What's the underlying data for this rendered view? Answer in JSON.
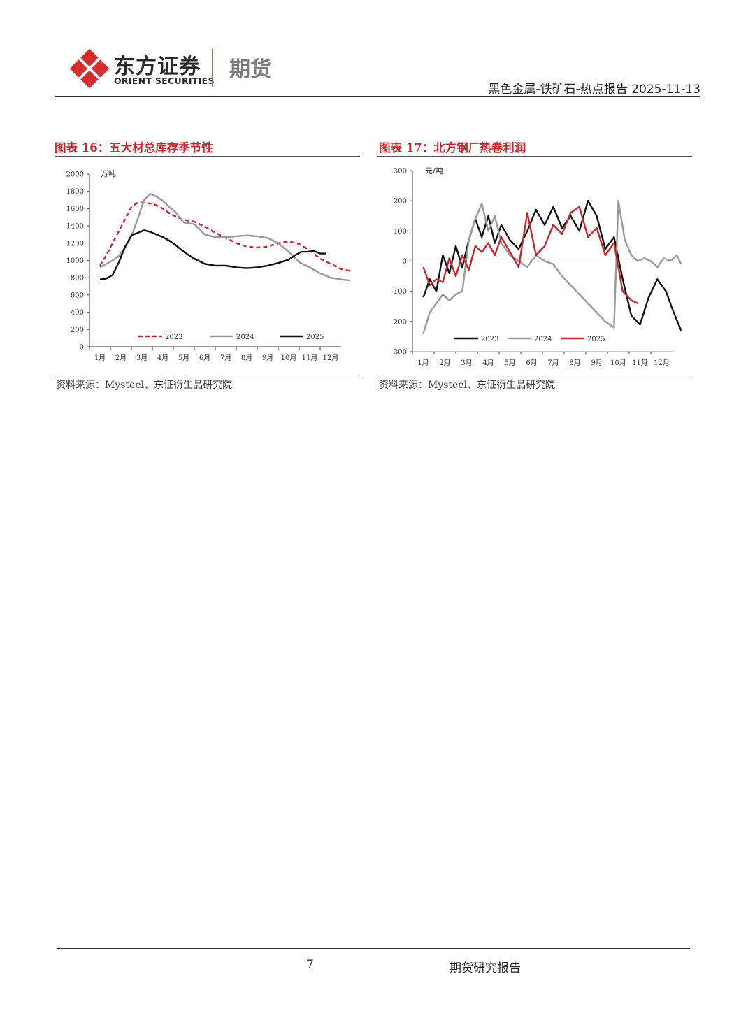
{
  "header": {
    "brand_cn": "东方证券",
    "brand_en": "ORIENT SECURITIES",
    "brand_sub": "期货",
    "report_title": "黑色金属-铁矿石-热点报告 2025-11-13"
  },
  "figures": [
    {
      "title": "图表 16：五大材总库存季节性",
      "source": "资料来源：Mysteel、东证衍生品研究院"
    },
    {
      "title": "图表 17：北方钢厂热卷利润",
      "source": "资料来源：Mysteel、东证衍生品研究院"
    }
  ],
  "chart_data": [
    {
      "type": "line",
      "unit": "万吨",
      "x_categories": [
        "1月",
        "2月",
        "3月",
        "4月",
        "5月",
        "6月",
        "7月",
        "8月",
        "9月",
        "10月",
        "11月",
        "12月"
      ],
      "ylim": [
        0,
        2000
      ],
      "yticks": [
        0,
        200,
        400,
        600,
        800,
        1000,
        1200,
        1400,
        1600,
        1800,
        2000
      ],
      "legend_position": "bottom",
      "series": [
        {
          "name": "2023",
          "color": "#c0282d",
          "style": "dashed",
          "x": [
            0,
            0.3,
            0.6,
            0.9,
            1.2,
            1.5,
            1.8,
            2.1,
            2.4,
            2.7,
            3.0,
            3.3,
            3.6,
            4.0,
            4.5,
            5.0,
            5.5,
            6.0,
            6.5,
            7.0,
            7.5,
            8.0,
            8.5,
            9.0,
            9.5,
            10.0,
            10.5,
            11.0,
            11.5,
            11.9
          ],
          "values": [
            940,
            1060,
            1200,
            1340,
            1480,
            1620,
            1670,
            1670,
            1660,
            1640,
            1600,
            1550,
            1510,
            1470,
            1450,
            1390,
            1320,
            1260,
            1200,
            1160,
            1150,
            1160,
            1200,
            1220,
            1190,
            1120,
            1020,
            960,
            900,
            880
          ]
        },
        {
          "name": "2024",
          "color": "#999999",
          "style": "solid",
          "x": [
            0,
            0.3,
            0.6,
            0.9,
            1.2,
            1.5,
            1.8,
            2.1,
            2.4,
            2.7,
            3.0,
            3.3,
            3.6,
            4.0,
            4.5,
            5.0,
            5.5,
            6.0,
            6.5,
            7.0,
            7.5,
            8.0,
            8.5,
            9.0,
            9.5,
            10.0,
            10.5,
            11.0,
            11.5,
            11.9
          ],
          "values": [
            920,
            960,
            1000,
            1050,
            1150,
            1280,
            1480,
            1700,
            1770,
            1740,
            1690,
            1620,
            1560,
            1440,
            1420,
            1300,
            1270,
            1270,
            1280,
            1290,
            1280,
            1260,
            1200,
            1100,
            980,
            920,
            850,
            800,
            780,
            770
          ]
        },
        {
          "name": "2025",
          "color": "#111111",
          "style": "solid",
          "x": [
            0,
            0.3,
            0.6,
            0.9,
            1.2,
            1.5,
            1.8,
            2.1,
            2.4,
            2.7,
            3.0,
            3.3,
            3.6,
            4.0,
            4.5,
            5.0,
            5.5,
            6.0,
            6.5,
            7.0,
            7.5,
            8.0,
            8.5,
            9.0,
            9.3,
            9.6,
            9.9,
            10.2,
            10.5,
            10.8
          ],
          "values": [
            780,
            790,
            830,
            980,
            1160,
            1290,
            1320,
            1350,
            1330,
            1300,
            1270,
            1230,
            1180,
            1100,
            1020,
            960,
            940,
            940,
            920,
            910,
            920,
            940,
            970,
            1010,
            1060,
            1100,
            1100,
            1110,
            1080,
            1080
          ]
        }
      ]
    },
    {
      "type": "line",
      "unit": "元/吨",
      "x_categories": [
        "1月",
        "2月",
        "3月",
        "4月",
        "5月",
        "6月",
        "7月",
        "8月",
        "9月",
        "10月",
        "11月",
        "12月"
      ],
      "ylim": [
        -300,
        300
      ],
      "yticks": [
        -300,
        -200,
        -100,
        0,
        100,
        200,
        300
      ],
      "legend_position": "bottom",
      "series": [
        {
          "name": "2023",
          "color": "#111111",
          "style": "solid",
          "x": [
            0,
            0.3,
            0.6,
            0.9,
            1.2,
            1.5,
            1.8,
            2.1,
            2.4,
            2.7,
            3.0,
            3.3,
            3.6,
            4.0,
            4.4,
            4.8,
            5.2,
            5.6,
            6.0,
            6.4,
            6.8,
            7.2,
            7.6,
            8.0,
            8.4,
            8.8,
            9.2,
            9.6,
            10.0,
            10.4,
            10.8,
            11.2,
            11.5,
            11.9
          ],
          "values": [
            -120,
            -60,
            -100,
            20,
            -40,
            50,
            -20,
            70,
            140,
            80,
            150,
            60,
            120,
            70,
            40,
            100,
            170,
            120,
            180,
            110,
            150,
            100,
            200,
            150,
            40,
            80,
            -60,
            -180,
            -210,
            -120,
            -60,
            -100,
            -160,
            -230
          ]
        },
        {
          "name": "2024",
          "color": "#999999",
          "style": "solid",
          "x": [
            0,
            0.3,
            0.6,
            0.9,
            1.2,
            1.5,
            1.8,
            2.1,
            2.4,
            2.7,
            3.0,
            3.3,
            3.6,
            4.0,
            4.4,
            4.8,
            5.2,
            5.6,
            6.0,
            6.4,
            6.8,
            7.2,
            7.6,
            8.0,
            8.4,
            8.8,
            9.0,
            9.3,
            9.6,
            9.9,
            10.2,
            10.5,
            10.8,
            11.1,
            11.4,
            11.7,
            11.9
          ],
          "values": [
            -240,
            -170,
            -140,
            -110,
            -130,
            -110,
            -100,
            70,
            140,
            190,
            100,
            150,
            60,
            20,
            0,
            -20,
            20,
            0,
            -10,
            -50,
            -80,
            -110,
            -140,
            -170,
            -200,
            -220,
            200,
            70,
            20,
            0,
            10,
            0,
            -20,
            10,
            0,
            20,
            -10
          ]
        },
        {
          "name": "2025",
          "color": "#c0282d",
          "style": "solid",
          "x": [
            0,
            0.3,
            0.6,
            0.9,
            1.2,
            1.5,
            1.8,
            2.1,
            2.4,
            2.7,
            3.0,
            3.3,
            3.6,
            4.0,
            4.4,
            4.8,
            5.2,
            5.6,
            6.0,
            6.4,
            6.8,
            7.2,
            7.6,
            8.0,
            8.4,
            8.8,
            9.2,
            9.6,
            9.9
          ],
          "values": [
            -20,
            -80,
            -60,
            -70,
            10,
            -50,
            20,
            -30,
            50,
            30,
            60,
            20,
            80,
            30,
            -20,
            160,
            20,
            50,
            120,
            90,
            160,
            180,
            80,
            110,
            20,
            60,
            -100,
            -130,
            -140
          ]
        }
      ]
    }
  ],
  "footer": {
    "page_number": "7",
    "label": "期货研究报告"
  }
}
